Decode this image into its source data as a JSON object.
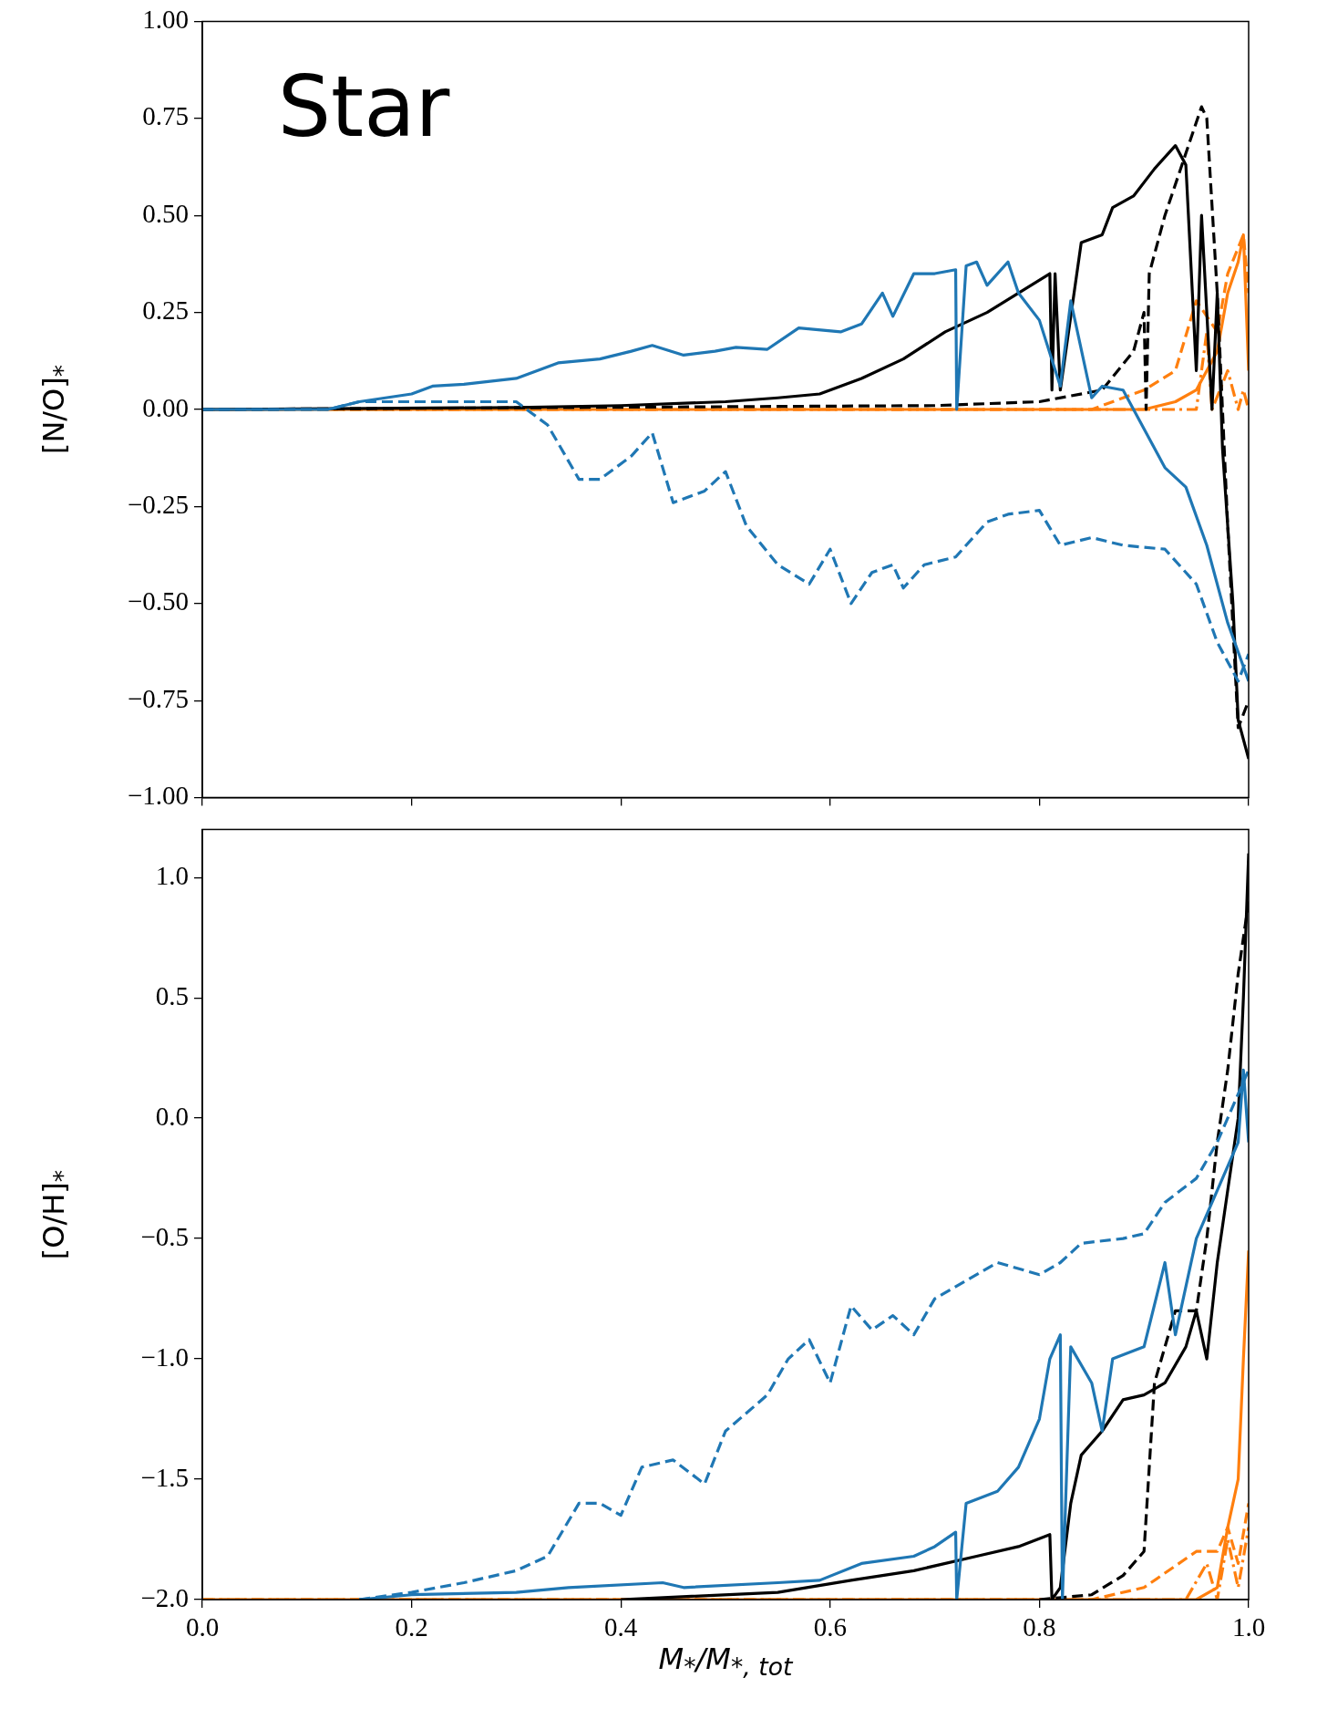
{
  "chart_data": [
    {
      "type": "line",
      "ylabel": "[N/O]$_{*}$",
      "annotations": [
        "Star"
      ],
      "tick_labels": "y",
      "grid": false,
      "legend": false,
      "marker": "none",
      "xlim": [
        0,
        1
      ],
      "xticks": [
        {
          "value": 0,
          "label": null
        },
        {
          "value": 0.2,
          "label": null
        },
        {
          "value": 0.4,
          "label": null
        },
        {
          "value": 0.6,
          "label": null
        },
        {
          "value": 0.8,
          "label": null
        },
        {
          "value": 1,
          "label": null
        }
      ],
      "ylim": [
        -1,
        1
      ],
      "yticks": [
        {
          "value": -1,
          "label": "−1.00"
        },
        {
          "value": -0.75,
          "label": "−0.75"
        },
        {
          "value": -0.5,
          "label": "−0.50"
        },
        {
          "value": -0.25,
          "label": "−0.25"
        },
        {
          "value": 0,
          "label": "0.00"
        },
        {
          "value": 0.25,
          "label": "0.25"
        },
        {
          "value": 0.5,
          "label": "0.50"
        },
        {
          "value": 0.75,
          "label": "0.75"
        },
        {
          "value": 1,
          "label": "1.00"
        }
      ],
      "series": [
        {
          "color": "#1f77b4",
          "line_style": "solid",
          "x": [
            0,
            0.12,
            0.15,
            0.2,
            0.22,
            0.25,
            0.3,
            0.34,
            0.38,
            0.41,
            0.43,
            0.46,
            0.49,
            0.51,
            0.54,
            0.57,
            0.61,
            0.63,
            0.65,
            0.66,
            0.68,
            0.7,
            0.72,
            0.721,
            0.73,
            0.74,
            0.75,
            0.77,
            0.78,
            0.8,
            0.82,
            0.83,
            0.85,
            0.86,
            0.88,
            0.9,
            0.92,
            0.94,
            0.96,
            0.98,
            1.0
          ],
          "values": [
            0,
            0,
            0.02,
            0.04,
            0.06,
            0.065,
            0.08,
            0.12,
            0.13,
            0.15,
            0.165,
            0.14,
            0.15,
            0.16,
            0.155,
            0.21,
            0.2,
            0.22,
            0.3,
            0.24,
            0.35,
            0.35,
            0.36,
            0,
            0.37,
            0.38,
            0.32,
            0.38,
            0.3,
            0.23,
            0.06,
            0.28,
            0.03,
            0.06,
            0.05,
            -0.05,
            -0.15,
            -0.2,
            -0.35,
            -0.55,
            -0.7
          ]
        },
        {
          "color": "#1f77b4",
          "line_style": "dashed",
          "x": [
            0,
            0.12,
            0.15,
            0.3,
            0.33,
            0.36,
            0.38,
            0.41,
            0.43,
            0.45,
            0.48,
            0.5,
            0.52,
            0.55,
            0.58,
            0.6,
            0.62,
            0.64,
            0.66,
            0.67,
            0.69,
            0.72,
            0.75,
            0.77,
            0.8,
            0.82,
            0.85,
            0.88,
            0.92,
            0.95,
            0.97,
            0.99,
            1.0
          ],
          "values": [
            0,
            0,
            0.02,
            0.02,
            -0.04,
            -0.18,
            -0.18,
            -0.12,
            -0.06,
            -0.24,
            -0.21,
            -0.16,
            -0.3,
            -0.4,
            -0.45,
            -0.36,
            -0.5,
            -0.42,
            -0.4,
            -0.46,
            -0.4,
            -0.38,
            -0.29,
            -0.27,
            -0.26,
            -0.35,
            -0.33,
            -0.35,
            -0.36,
            -0.45,
            -0.6,
            -0.7,
            -0.63
          ]
        },
        {
          "color": "#000000",
          "line_style": "solid",
          "x": [
            0,
            0.3,
            0.4,
            0.5,
            0.55,
            0.59,
            0.63,
            0.67,
            0.71,
            0.75,
            0.78,
            0.81,
            0.812,
            0.815,
            0.82,
            0.84,
            0.86,
            0.87,
            0.89,
            0.91,
            0.93,
            0.94,
            0.95,
            0.955,
            0.965,
            0.97,
            0.975,
            0.985,
            0.99,
            1.0
          ],
          "values": [
            0,
            0.005,
            0.01,
            0.02,
            0.03,
            0.04,
            0.08,
            0.13,
            0.2,
            0.25,
            0.3,
            0.35,
            0.05,
            0.35,
            0.05,
            0.43,
            0.45,
            0.52,
            0.55,
            0.62,
            0.68,
            0.63,
            0.1,
            0.5,
            0,
            0.3,
            -0.1,
            -0.5,
            -0.8,
            -0.9
          ]
        },
        {
          "color": "#000000",
          "line_style": "dashed",
          "x": [
            0,
            0.7,
            0.8,
            0.86,
            0.89,
            0.9,
            0.902,
            0.905,
            0.92,
            0.94,
            0.955,
            0.96,
            0.97,
            0.98,
            0.99,
            1.0
          ],
          "values": [
            0,
            0.01,
            0.02,
            0.05,
            0.15,
            0.25,
            0,
            0.35,
            0.5,
            0.66,
            0.78,
            0.75,
            0.3,
            -0.3,
            -0.82,
            -0.75
          ]
        },
        {
          "color": "#ff7f0e",
          "line_style": "solid",
          "x": [
            0,
            0.9,
            0.93,
            0.95,
            0.97,
            0.98,
            0.99,
            0.995,
            1.0
          ],
          "values": [
            0,
            0,
            0.02,
            0.05,
            0.15,
            0.3,
            0.38,
            0.45,
            0.1
          ]
        },
        {
          "color": "#ff7f0e",
          "line_style": "dashed",
          "x": [
            0,
            0.85,
            0.9,
            0.93,
            0.95,
            0.97,
            0.98,
            0.995,
            1.0
          ],
          "values": [
            0,
            0,
            0.05,
            0.1,
            0.28,
            0.2,
            0.35,
            0.45,
            0.3
          ]
        },
        {
          "color": "#ff7f0e",
          "line_style": "dotted",
          "x": [
            0,
            0.95,
            0.96,
            0.965,
            0.98,
            0.99,
            0.995,
            1.0
          ],
          "values": [
            0,
            0,
            0.2,
            0,
            0.1,
            0,
            0.05,
            0
          ]
        }
      ]
    },
    {
      "type": "line",
      "ylabel": "[O/H]$_{*}$",
      "xlabel": "M$_{*}$/M$_{*, tot}$",
      "grid": false,
      "legend": false,
      "marker": "none",
      "xlim": [
        0,
        1
      ],
      "xticks": [
        {
          "value": 0,
          "label": "0.0"
        },
        {
          "value": 0.2,
          "label": "0.2"
        },
        {
          "value": 0.4,
          "label": "0.4"
        },
        {
          "value": 0.6,
          "label": "0.6"
        },
        {
          "value": 0.8,
          "label": "0.8"
        },
        {
          "value": 1,
          "label": "1.0"
        }
      ],
      "ylim": [
        -2,
        1.2
      ],
      "yticks": [
        {
          "value": -2,
          "label": "−2.0"
        },
        {
          "value": -1.5,
          "label": "−1.5"
        },
        {
          "value": -1,
          "label": "−1.0"
        },
        {
          "value": -0.5,
          "label": "−0.5"
        },
        {
          "value": 0,
          "label": "0.0"
        },
        {
          "value": 0.5,
          "label": "0.5"
        },
        {
          "value": 1,
          "label": "1.0"
        }
      ],
      "series": [
        {
          "color": "#1f77b4",
          "line_style": "solid",
          "x": [
            0.15,
            0.2,
            0.3,
            0.35,
            0.44,
            0.46,
            0.55,
            0.59,
            0.63,
            0.68,
            0.7,
            0.72,
            0.721,
            0.73,
            0.76,
            0.78,
            0.8,
            0.81,
            0.82,
            0.822,
            0.83,
            0.85,
            0.86,
            0.87,
            0.9,
            0.92,
            0.93,
            0.95,
            0.97,
            0.99,
            0.995,
            1.0
          ],
          "values": [
            -2,
            -1.98,
            -1.97,
            -1.95,
            -1.93,
            -1.95,
            -1.93,
            -1.92,
            -1.85,
            -1.82,
            -1.78,
            -1.72,
            -2,
            -1.6,
            -1.55,
            -1.45,
            -1.25,
            -1,
            -0.9,
            -2,
            -0.95,
            -1.1,
            -1.3,
            -1,
            -0.95,
            -0.6,
            -0.9,
            -0.5,
            -0.3,
            -0.1,
            0.2,
            -0.1
          ]
        },
        {
          "color": "#1f77b4",
          "line_style": "dashed",
          "x": [
            0.15,
            0.2,
            0.25,
            0.3,
            0.33,
            0.36,
            0.38,
            0.4,
            0.42,
            0.45,
            0.48,
            0.5,
            0.54,
            0.56,
            0.58,
            0.6,
            0.62,
            0.64,
            0.66,
            0.68,
            0.7,
            0.74,
            0.76,
            0.8,
            0.82,
            0.84,
            0.88,
            0.9,
            0.92,
            0.95,
            0.97,
            0.99,
            1.0
          ],
          "values": [
            -2,
            -1.97,
            -1.93,
            -1.88,
            -1.82,
            -1.6,
            -1.6,
            -1.65,
            -1.45,
            -1.42,
            -1.52,
            -1.3,
            -1.15,
            -1,
            -0.92,
            -1.1,
            -0.78,
            -0.88,
            -0.82,
            -0.9,
            -0.75,
            -0.65,
            -0.6,
            -0.65,
            -0.6,
            -0.52,
            -0.5,
            -0.48,
            -0.35,
            -0.25,
            -0.1,
            0.1,
            0.2
          ]
        },
        {
          "color": "#000000",
          "line_style": "solid",
          "x": [
            0.4,
            0.55,
            0.62,
            0.68,
            0.74,
            0.78,
            0.81,
            0.812,
            0.82,
            0.83,
            0.84,
            0.86,
            0.88,
            0.9,
            0.92,
            0.94,
            0.95,
            0.96,
            0.97,
            0.98,
            0.99,
            0.995,
            1.0
          ],
          "values": [
            -2,
            -1.97,
            -1.92,
            -1.88,
            -1.82,
            -1.78,
            -1.73,
            -2,
            -1.95,
            -1.6,
            -1.4,
            -1.3,
            -1.17,
            -1.15,
            -1.1,
            -0.95,
            -0.8,
            -1,
            -0.6,
            -0.3,
            0,
            0.5,
            1.1
          ]
        },
        {
          "color": "#000000",
          "line_style": "dashed",
          "x": [
            0.8,
            0.85,
            0.88,
            0.9,
            0.91,
            0.93,
            0.95,
            0.96,
            0.97,
            0.98,
            0.99,
            1.0
          ],
          "values": [
            -2,
            -1.98,
            -1.9,
            -1.8,
            -1.1,
            -0.8,
            -0.8,
            -0.5,
            -0.1,
            0.2,
            0.6,
            0.9
          ]
        },
        {
          "color": "#ff7f0e",
          "line_style": "solid",
          "x": [
            0,
            0.95,
            0.97,
            0.98,
            0.99,
            0.995,
            1.0
          ],
          "values": [
            -2,
            -2,
            -1.95,
            -1.7,
            -1.5,
            -1,
            -0.55
          ]
        },
        {
          "color": "#ff7f0e",
          "line_style": "dashed",
          "x": [
            0,
            0.85,
            0.9,
            0.95,
            0.97,
            0.98,
            0.99,
            1.0
          ],
          "values": [
            -2,
            -2,
            -1.95,
            -1.8,
            -1.8,
            -1.7,
            -1.85,
            -1.6
          ]
        },
        {
          "color": "#ff7f0e",
          "line_style": "dotted",
          "x": [
            0,
            0.94,
            0.96,
            0.97,
            0.98,
            0.99,
            1.0
          ],
          "values": [
            -2,
            -2,
            -1.85,
            -2,
            -1.75,
            -1.95,
            -1.7
          ]
        }
      ]
    }
  ]
}
